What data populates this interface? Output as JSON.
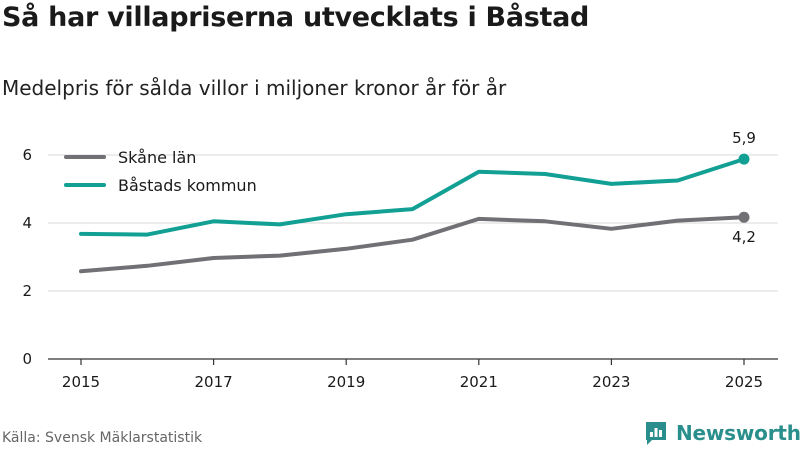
{
  "header": {
    "title": "Så har villapriserna utvecklats i Båstad",
    "subtitle": "Medelpris för sålda villor i miljoner kronor år för år"
  },
  "footer": {
    "source": "Källa: Svensk Mäklarstatistik",
    "brand": "Newsworthy"
  },
  "colors": {
    "skane": "#707075",
    "bastad": "#12a094",
    "grid": "#d9d9d9",
    "axis": "#333333",
    "brand": "#2a8f8c"
  },
  "chart_data": {
    "type": "line",
    "title": "Så har villapriserna utvecklats i Båstad",
    "subtitle": "Medelpris för sålda villor i miljoner kronor år för år",
    "xlabel": "",
    "ylabel": "",
    "x": [
      2015,
      2016,
      2017,
      2018,
      2019,
      2020,
      2021,
      2022,
      2023,
      2024,
      2025
    ],
    "x_ticks": [
      "2015",
      "2017",
      "2019",
      "2021",
      "2023",
      "2025"
    ],
    "y_ticks": [
      "0",
      "2",
      "4",
      "6"
    ],
    "ylim": [
      0,
      6.5
    ],
    "grid": true,
    "legend_position": "top-left",
    "series": [
      {
        "name": "Skåne län",
        "color": "#707075",
        "values": [
          2.58,
          2.74,
          2.97,
          3.04,
          3.24,
          3.51,
          4.12,
          4.05,
          3.83,
          4.07,
          4.17
        ],
        "end_label": "4,2"
      },
      {
        "name": "Båstads kommun",
        "color": "#12a094",
        "values": [
          3.68,
          3.66,
          4.05,
          3.96,
          4.26,
          4.41,
          5.51,
          5.44,
          5.15,
          5.25,
          5.88
        ],
        "end_label": "5,9"
      }
    ]
  }
}
